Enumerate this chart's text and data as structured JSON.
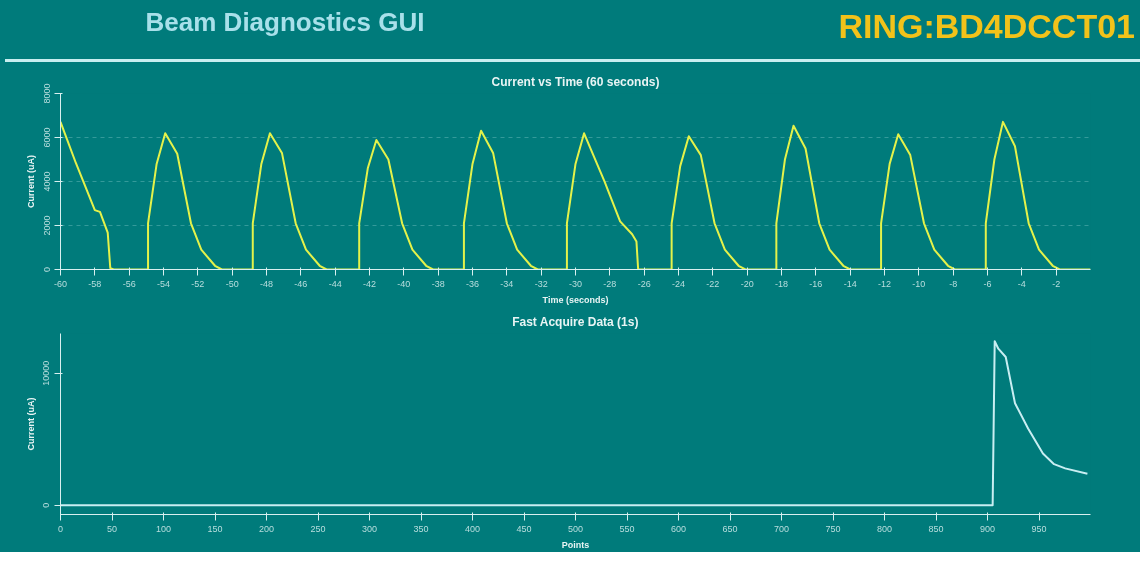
{
  "chart_data": [
    {
      "type": "line",
      "title": "Current vs Time (60 seconds)",
      "xlabel": "Time (seconds)",
      "ylabel": "Current (uA)",
      "annotations": [
        "Beam Diagnostics GUI",
        "RING:BD4DCCT01"
      ],
      "x": [
        -60,
        -59.1,
        -58.0,
        -57.7,
        -57.25,
        -57.1,
        -56.9,
        -54.9,
        -54.9,
        -54.4,
        -53.9,
        -53.2,
        -52.4,
        -51.8,
        -51.0,
        -50.6,
        -48.8,
        -48.8,
        -48.3,
        -47.8,
        -47.1,
        -46.3,
        -45.7,
        -44.9,
        -44.5,
        -42.6,
        -42.6,
        -42.1,
        -41.6,
        -40.9,
        -40.1,
        -39.5,
        -38.7,
        -38.3,
        -36.5,
        -36.5,
        -36.0,
        -35.5,
        -34.8,
        -34.0,
        -33.4,
        -32.6,
        -32.2,
        -30.5,
        -30.5,
        -30.0,
        -29.5,
        -28.3,
        -27.4,
        -26.7,
        -26.45,
        -26.35,
        -24.4,
        -24.4,
        -23.9,
        -23.4,
        -22.7,
        -21.9,
        -21.3,
        -20.5,
        -20.1,
        -18.3,
        -18.3,
        -17.8,
        -17.3,
        -16.6,
        -15.8,
        -15.2,
        -14.4,
        -14.0,
        -12.2,
        -12.2,
        -11.7,
        -11.2,
        -10.5,
        -9.7,
        -9.1,
        -8.3,
        -7.9,
        -6.1,
        -6.1,
        -5.6,
        -5.1,
        -4.4,
        -3.6,
        -3.0,
        -2.2,
        -1.8,
        0
      ],
      "series": [
        {
          "color": "#e4f24a",
          "values": [
            6710,
            4830,
            2700,
            2620,
            1680,
            60,
            0,
            0,
            2100,
            4800,
            6190,
            5260,
            2100,
            900,
            170,
            0,
            0,
            2100,
            4800,
            6190,
            5300,
            2100,
            900,
            170,
            0,
            0,
            2100,
            4600,
            5890,
            5000,
            2100,
            900,
            170,
            0,
            0,
            2100,
            4800,
            6310,
            5300,
            2100,
            900,
            170,
            0,
            0,
            2100,
            4800,
            6190,
            3980,
            2190,
            1600,
            1270,
            0,
            0,
            2100,
            4700,
            6060,
            5200,
            2100,
            900,
            170,
            0,
            0,
            2100,
            5000,
            6530,
            5500,
            2100,
            900,
            170,
            0,
            0,
            2100,
            4800,
            6150,
            5200,
            2100,
            900,
            170,
            0,
            0,
            2100,
            5000,
            6710,
            5600,
            2100,
            900,
            170,
            0,
            0
          ]
        }
      ],
      "xlim": [
        -60,
        0
      ],
      "ylim": [
        0,
        8000
      ],
      "xticks": [
        -60,
        -58,
        -56,
        -54,
        -52,
        -50,
        -48,
        -46,
        -44,
        -42,
        -40,
        -38,
        -36,
        -34,
        -32,
        -30,
        -28,
        -26,
        -24,
        -22,
        -20,
        -18,
        -16,
        -14,
        -12,
        -10,
        -8,
        -6,
        -4,
        -2
      ],
      "yticks": [
        0,
        2000,
        4000,
        6000,
        8000
      ],
      "grid": "y"
    },
    {
      "type": "line",
      "title": "Fast Acquire Data (1s)",
      "xlabel": "Points",
      "ylabel": "Current (uA)",
      "x": [
        0,
        905,
        907,
        910.5,
        917.7,
        926.7,
        939.4,
        953.8,
        964.6,
        975.4,
        997
      ],
      "series": [
        {
          "color": "#c8eef2",
          "values": [
            0,
            0,
            12420,
            11850,
            11220,
            7720,
            5810,
            3910,
            3110,
            2790,
            2380
          ]
        }
      ],
      "xlim": [
        0,
        1000
      ],
      "ylim": [
        -700,
        13000
      ],
      "xticks": [
        0,
        50,
        100,
        150,
        200,
        250,
        300,
        350,
        400,
        450,
        500,
        550,
        600,
        650,
        700,
        750,
        800,
        850,
        900,
        950
      ],
      "yticks": [
        0,
        10000
      ],
      "grid": false
    }
  ]
}
